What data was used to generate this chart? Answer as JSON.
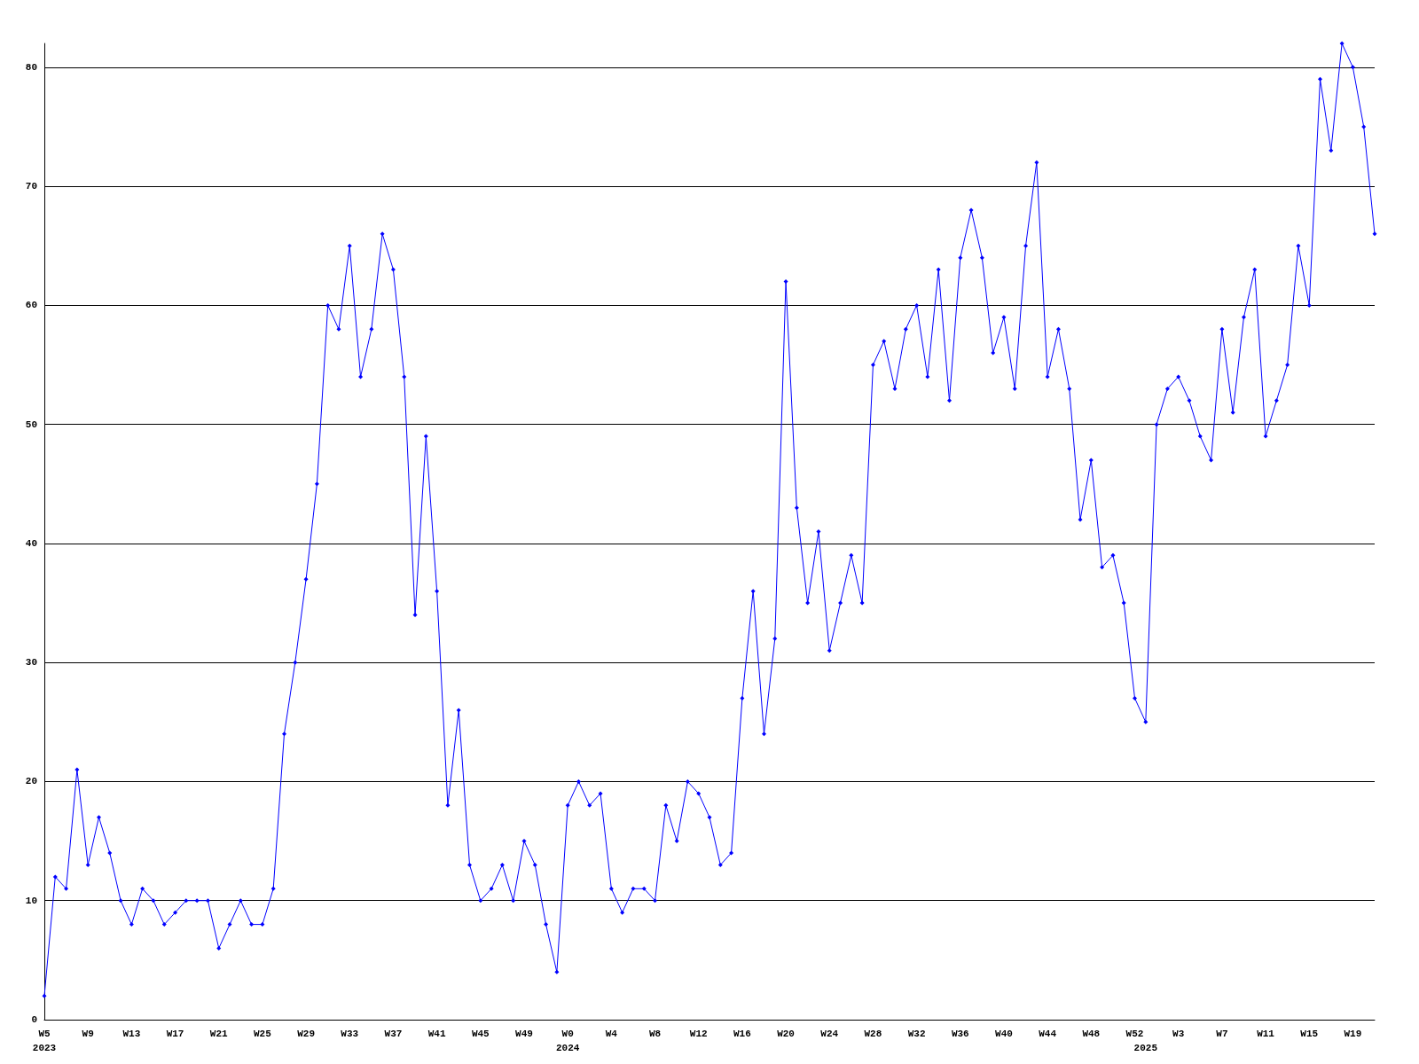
{
  "chart_data": {
    "type": "line",
    "categories": [
      "W5\n2023",
      null,
      null,
      null,
      "W9",
      null,
      null,
      null,
      "W13",
      null,
      null,
      null,
      "W17",
      null,
      null,
      null,
      "W21",
      null,
      null,
      null,
      "W25",
      null,
      null,
      null,
      "W29",
      null,
      null,
      null,
      "W33",
      null,
      null,
      null,
      "W37",
      null,
      null,
      null,
      "W41",
      null,
      null,
      null,
      "W45",
      null,
      null,
      null,
      "W49",
      null,
      null,
      null,
      "W0\n2024",
      null,
      null,
      null,
      "W4",
      null,
      null,
      null,
      "W8",
      null,
      null,
      null,
      "W12",
      null,
      null,
      null,
      "W16",
      null,
      null,
      null,
      "W20",
      null,
      null,
      null,
      "W24",
      null,
      null,
      null,
      "W28",
      null,
      null,
      null,
      "W32",
      null,
      null,
      null,
      "W36",
      null,
      null,
      null,
      "W40",
      null,
      null,
      null,
      "W44",
      null,
      null,
      null,
      "W48",
      null,
      null,
      null,
      "W52",
      "\n2025",
      null,
      null,
      "W3",
      null,
      null,
      null,
      "W7",
      null,
      null,
      null,
      "W11",
      null,
      null,
      null,
      "W15",
      null,
      null,
      null,
      "W19",
      null,
      null
    ],
    "series": [
      {
        "color": "#0000ff",
        "values": [
          2,
          12,
          11,
          21,
          13,
          17,
          14,
          10,
          8,
          11,
          10,
          8,
          9,
          10,
          10,
          10,
          6,
          8,
          10,
          8,
          8,
          11,
          24,
          30,
          37,
          45,
          60,
          58,
          65,
          54,
          58,
          66,
          63,
          54,
          34,
          49,
          36,
          18,
          26,
          13,
          10,
          11,
          13,
          10,
          15,
          13,
          8,
          4,
          18,
          20,
          18,
          19,
          11,
          9,
          11,
          11,
          10,
          18,
          15,
          20,
          19,
          17,
          13,
          14,
          27,
          36,
          24,
          32,
          62,
          43,
          35,
          41,
          31,
          35,
          39,
          35,
          55,
          57,
          53,
          58,
          60,
          54,
          63,
          52,
          64,
          68,
          64,
          56,
          59,
          53,
          65,
          72,
          54,
          58,
          53,
          42,
          47,
          38,
          39,
          35,
          27,
          25,
          50,
          53,
          54,
          52,
          49,
          47,
          58,
          51,
          59,
          63,
          49,
          52,
          55,
          65,
          60,
          79,
          73,
          82,
          80,
          75,
          66
        ]
      }
    ],
    "ylim": [
      0,
      82
    ],
    "yticks": [
      0,
      10,
      20,
      30,
      40,
      50,
      60,
      70,
      80
    ],
    "grid": "y",
    "marker": "diamond",
    "line_style": "solid"
  }
}
